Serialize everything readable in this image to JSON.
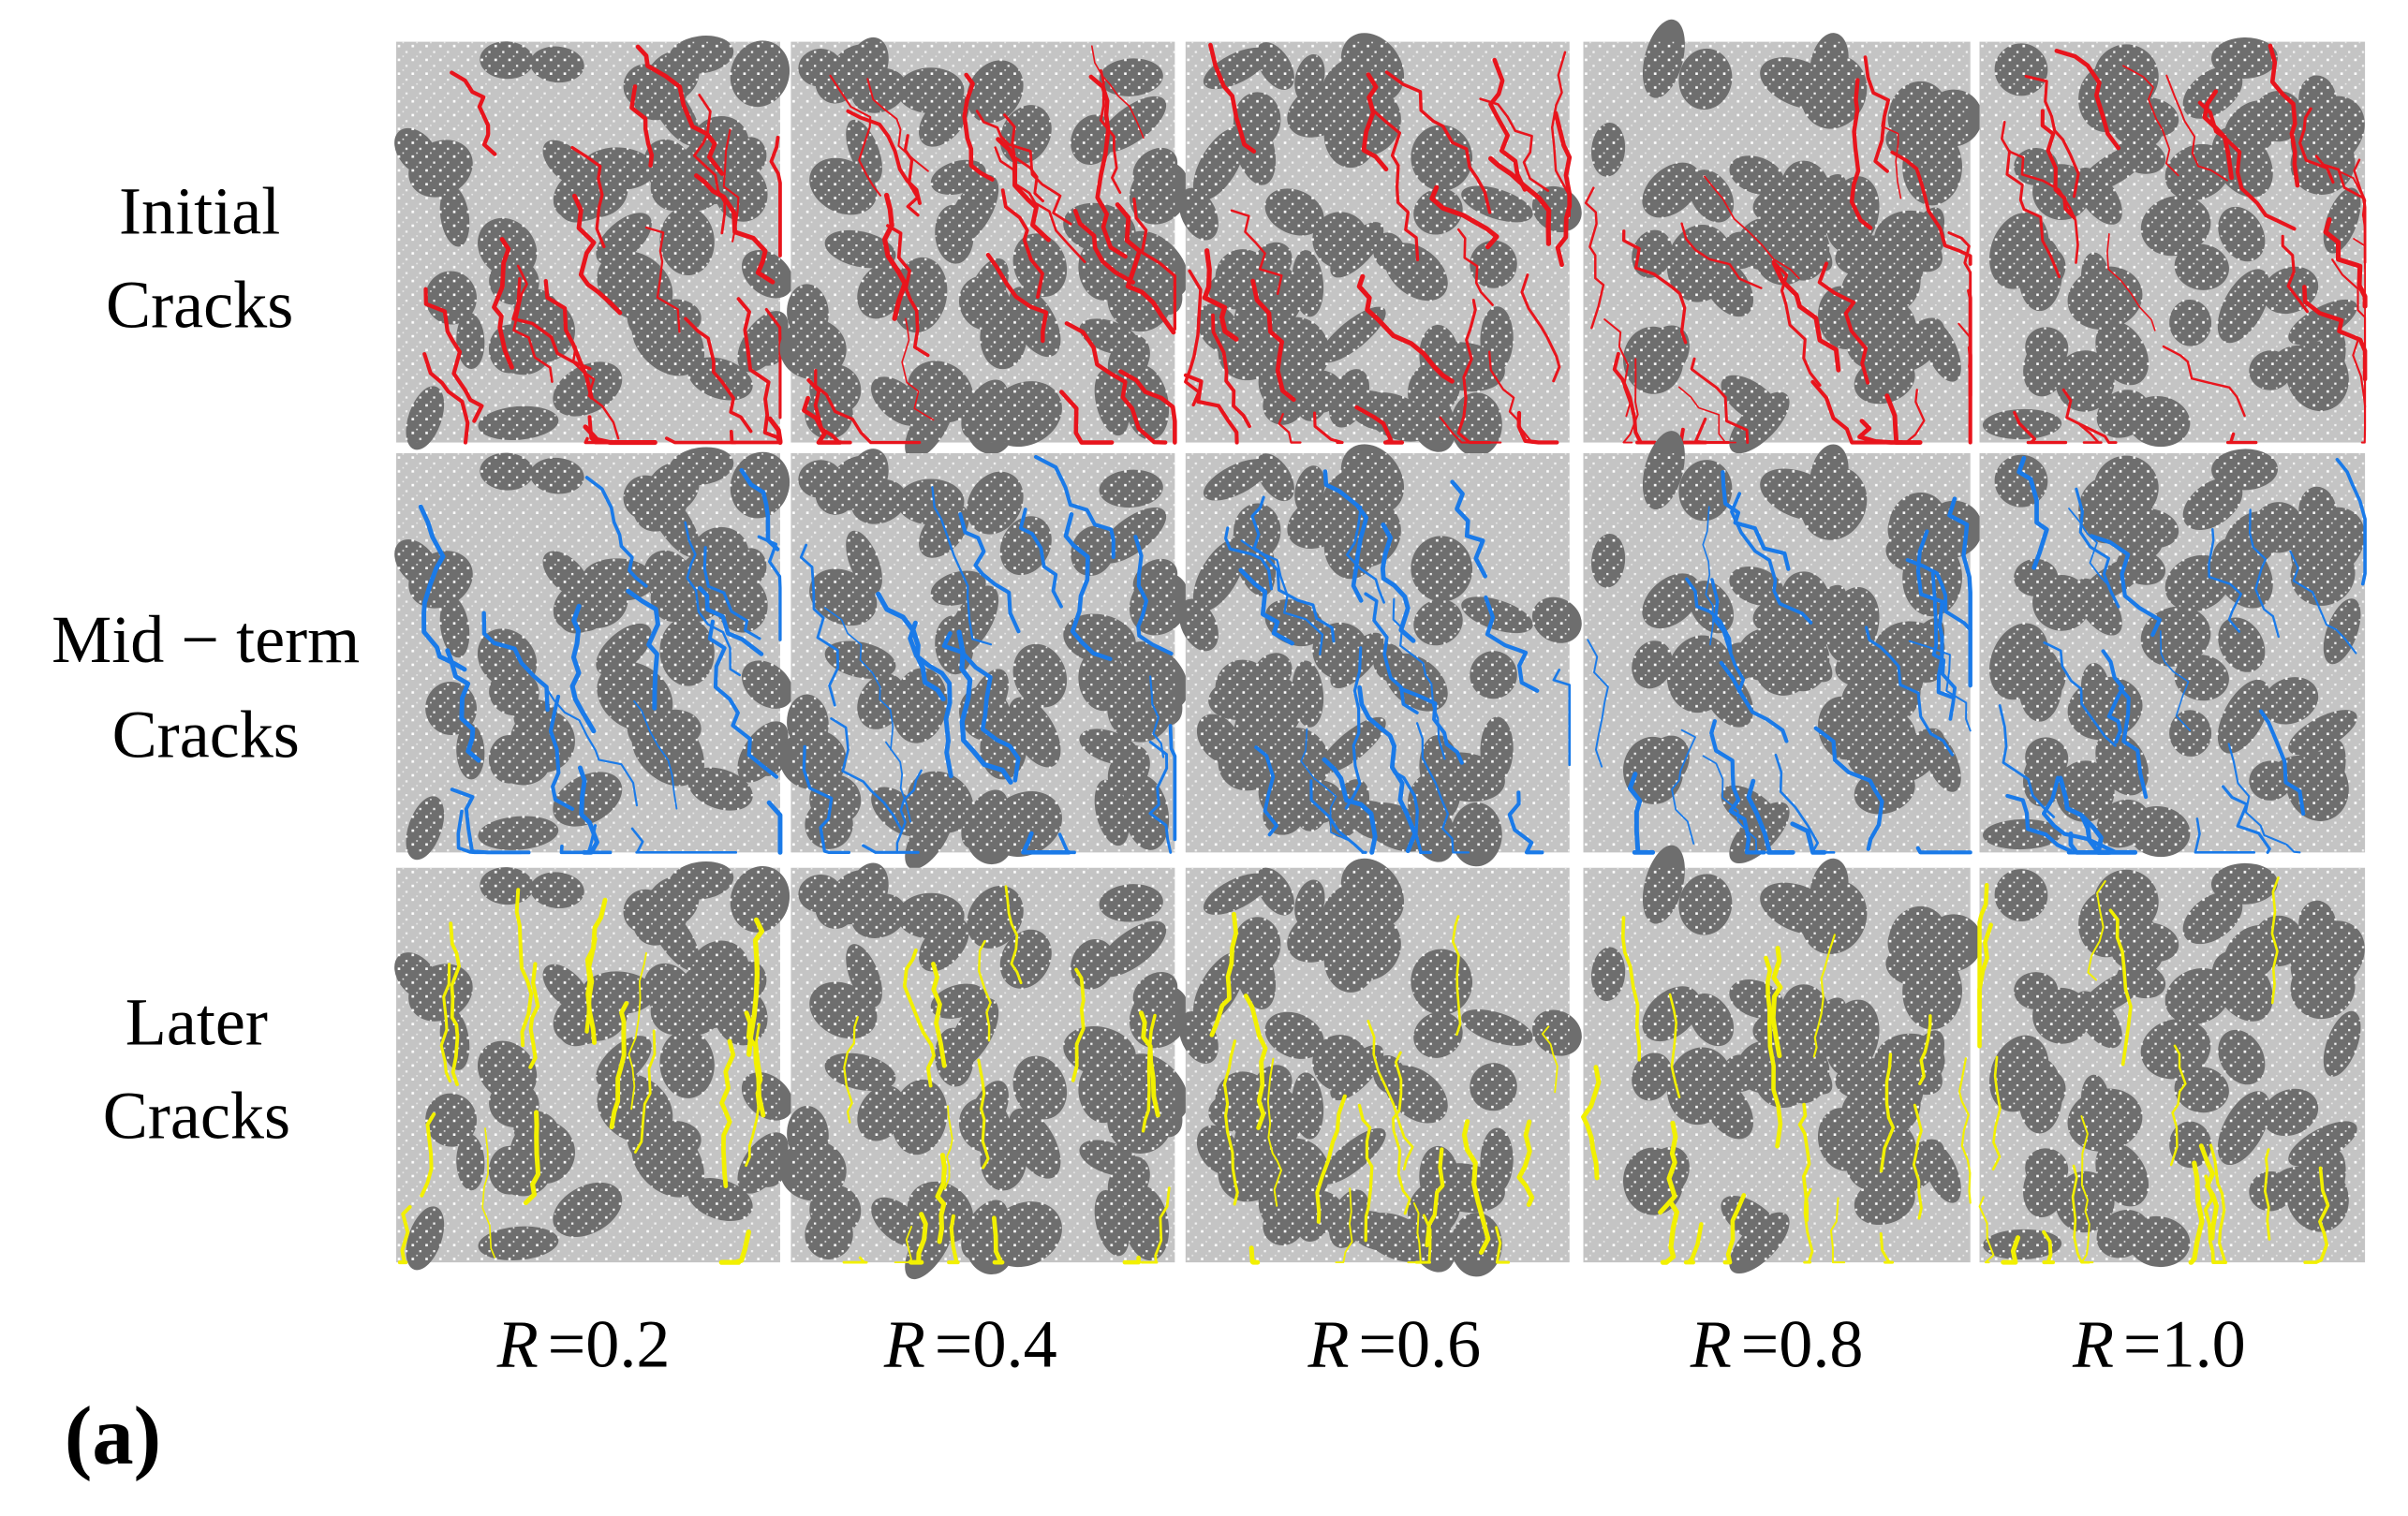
{
  "row_labels": [
    {
      "lines": [
        "Initial",
        "Cracks"
      ]
    },
    {
      "lines": [
        "Mid − term",
        "Cracks"
      ]
    },
    {
      "lines": [
        "Later",
        "Cracks"
      ]
    }
  ],
  "column_labels": [
    {
      "variable": "R",
      "value": "=0.2"
    },
    {
      "variable": "R",
      "value": "=0.4"
    },
    {
      "variable": "R",
      "value": "=0.6"
    },
    {
      "variable": "R",
      "value": "=0.8"
    },
    {
      "variable": "R",
      "value": "=1.0"
    }
  ],
  "panel_label": "(a)"
}
